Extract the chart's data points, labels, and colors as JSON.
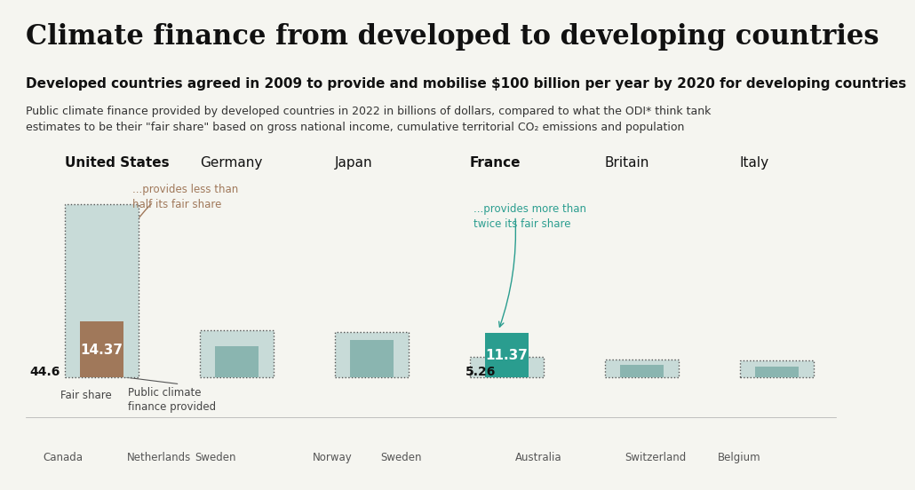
{
  "title": "Climate finance from developed to developing countries",
  "subtitle": "Developed countries agreed in 2009 to provide and mobilise $100 billion per year by 2020 for developing countries",
  "description": "Public climate finance provided by developed countries in 2022 in billions of dollars, compared to what the ODI* think tank\nestimates to be their \"fair share\" based on gross national income, cumulative territorial CO₂ emissions and population",
  "background_color": "#f5f5f0",
  "countries": [
    "United States",
    "Germany",
    "Japan",
    "France",
    "Britain",
    "Italy"
  ],
  "fair_share": [
    44.6,
    12.0,
    11.5,
    5.26,
    4.5,
    4.2
  ],
  "provided": [
    14.37,
    8.0,
    9.5,
    11.37,
    3.2,
    2.8
  ],
  "us_fair_share": 44.6,
  "us_provided": 14.37,
  "france_fair_share": 5.26,
  "france_provided": 11.37,
  "bar_color_provided_us": "#a0785a",
  "bar_color_provided_france": "#2a9d8f",
  "bar_color_provided_other": "#8ab5b0",
  "bar_color_fair_share": "#c8dbd8",
  "dotted_border_color": "#555555",
  "annotation_us_color": "#a0785a",
  "annotation_france_color": "#2a9d8f",
  "title_fontsize": 22,
  "subtitle_fontsize": 11,
  "desc_fontsize": 9,
  "country_fontsize": 11,
  "value_fontsize": 11,
  "bottom_labels": [
    "Canada",
    "Netherlands",
    "Sweden",
    "Norway",
    "Sweden",
    "Australia",
    "Switzerland",
    "Belgium"
  ]
}
